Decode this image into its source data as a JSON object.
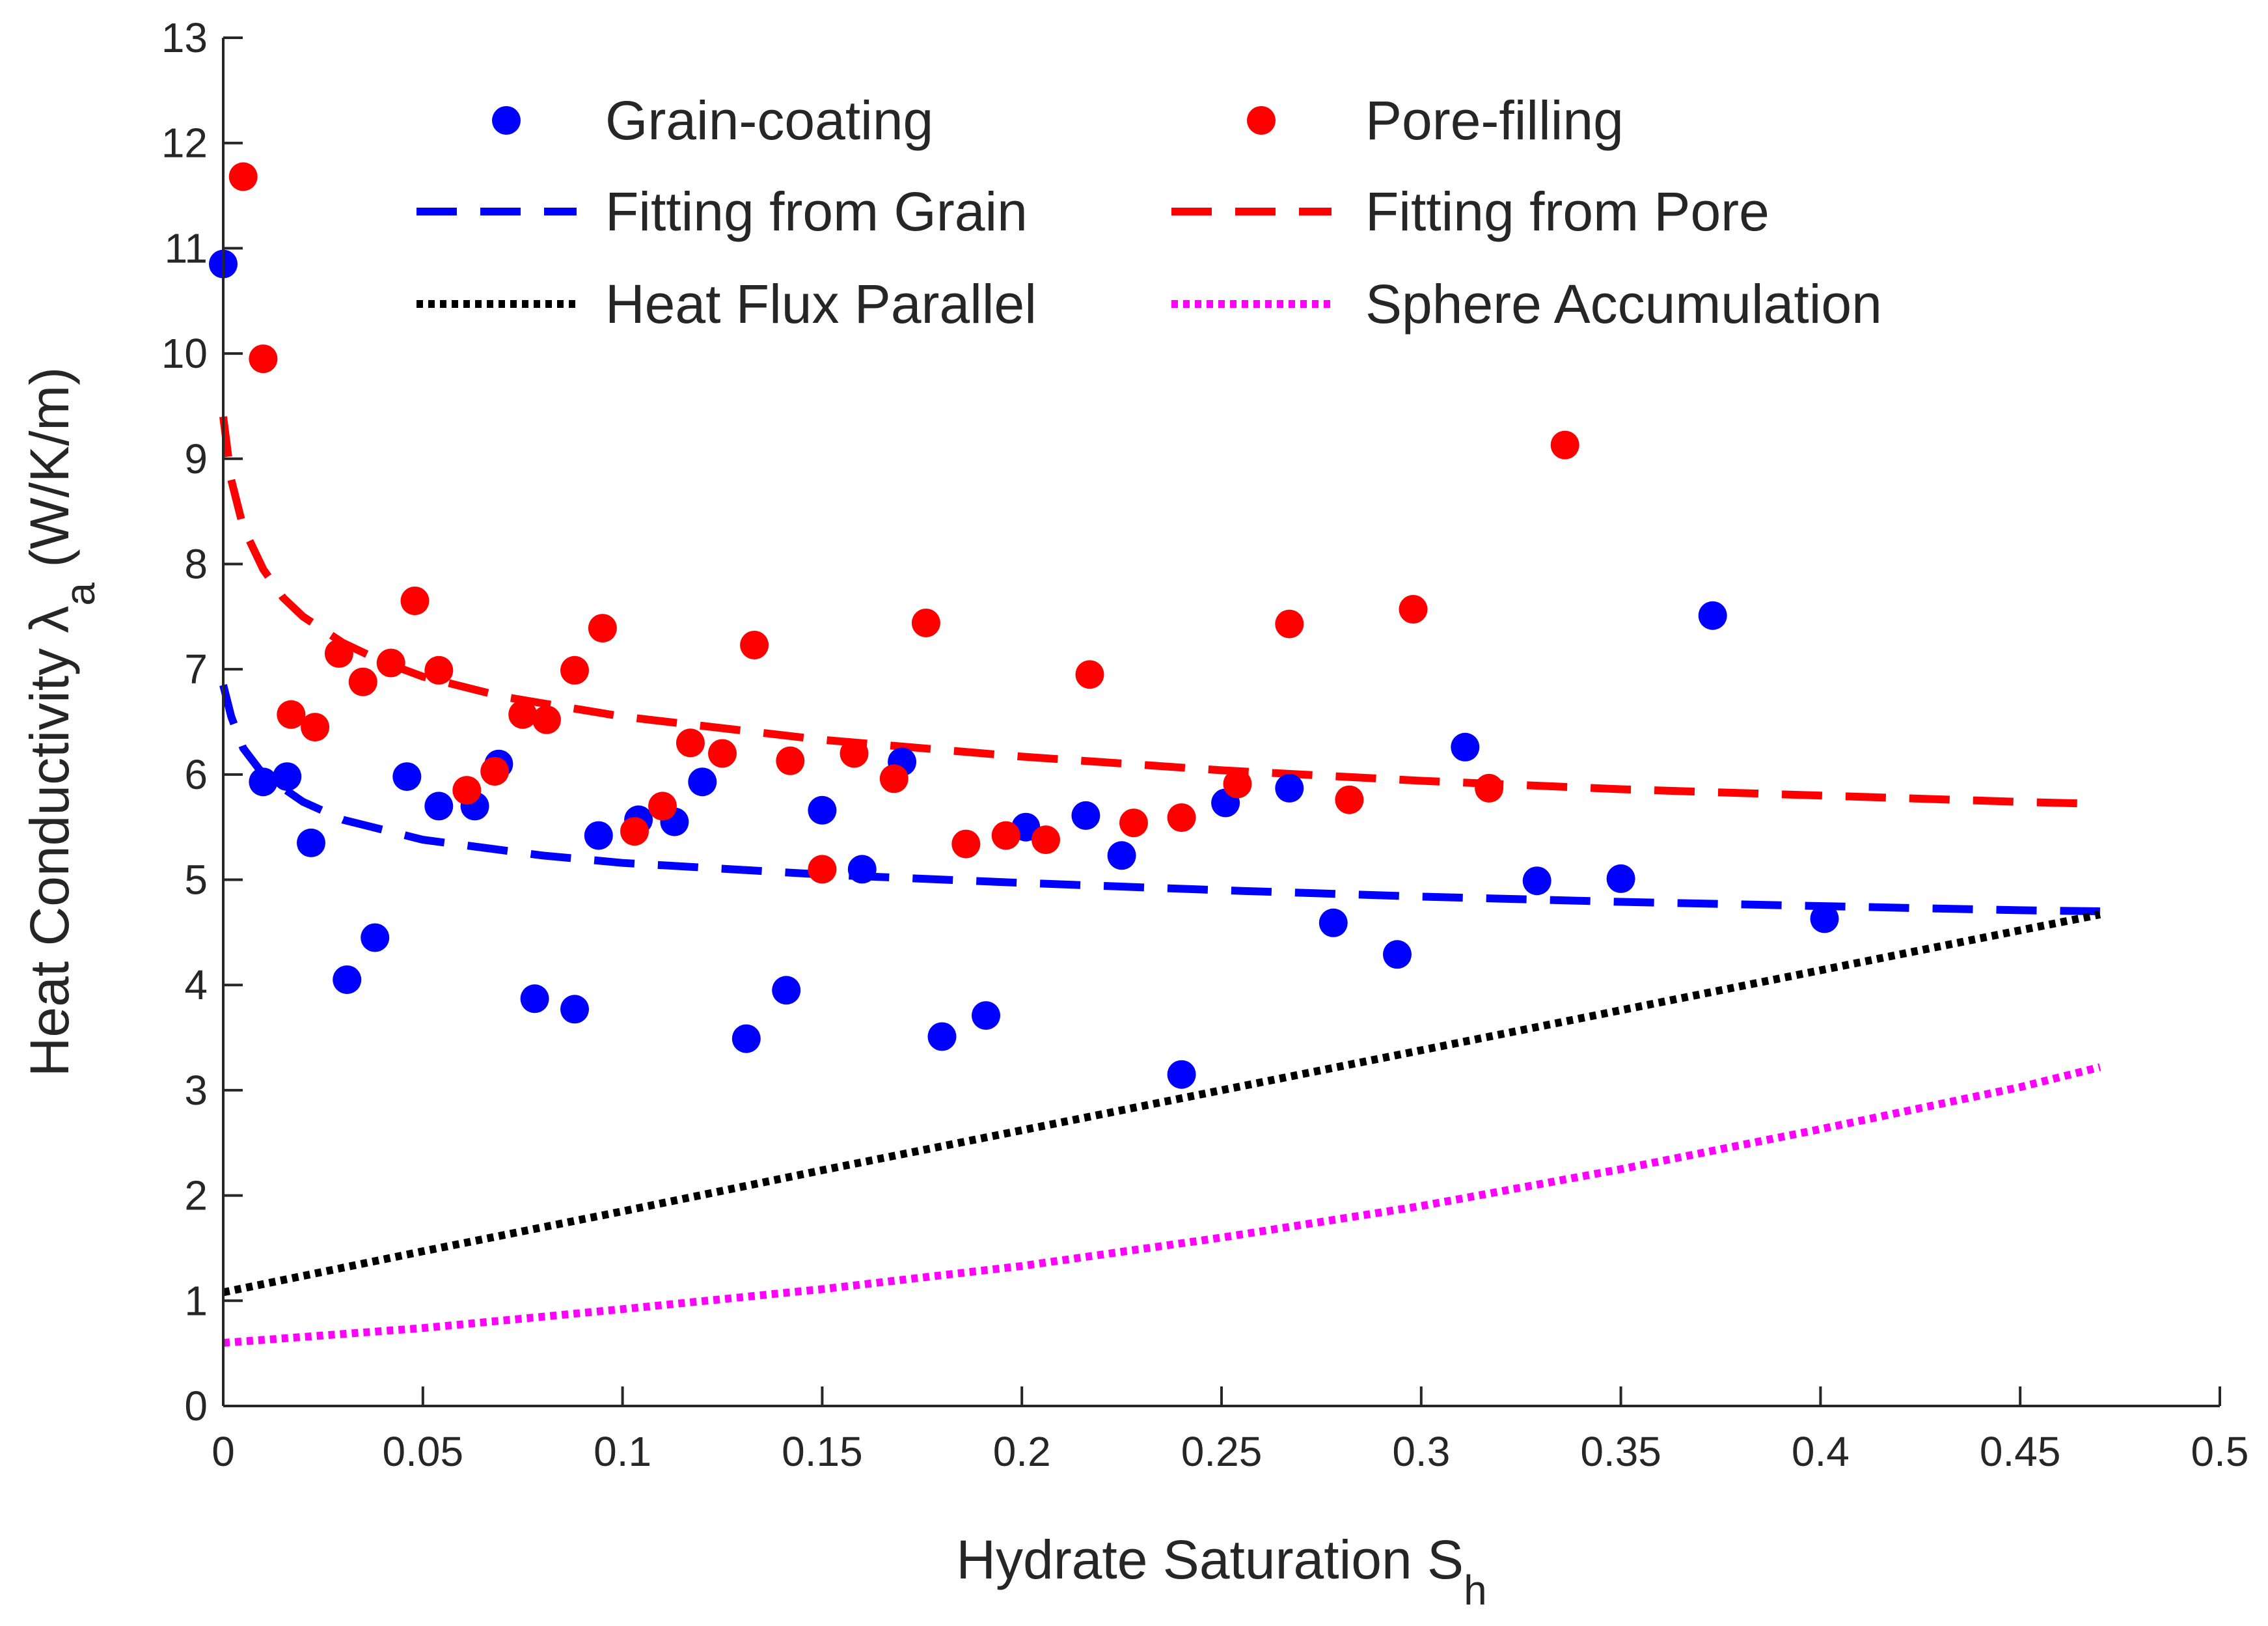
{
  "chart_data": {
    "type": "scatter",
    "xlabel": "Hydrate Saturation S",
    "xlabel_sub": "h",
    "ylabel": "Heat Conductivity λ",
    "ylabel_sub": "a",
    "ylabel_unit": " (W/K/m)",
    "xlim": [
      0,
      0.5
    ],
    "ylim": [
      0,
      13
    ],
    "xticks": [
      0,
      0.05,
      0.1,
      0.15,
      0.2,
      0.25,
      0.3,
      0.35,
      0.4,
      0.45,
      0.5
    ],
    "xtick_labels": [
      "0",
      "0.05",
      "0.1",
      "0.15",
      "0.2",
      "0.25",
      "0.3",
      "0.35",
      "0.4",
      "0.45",
      "0.5"
    ],
    "yticks": [
      0,
      1,
      2,
      3,
      4,
      5,
      6,
      7,
      8,
      9,
      10,
      11,
      12,
      13
    ],
    "ytick_labels": [
      "0",
      "1",
      "2",
      "3",
      "4",
      "5",
      "6",
      "7",
      "8",
      "9",
      "10",
      "11",
      "12",
      "13"
    ],
    "grid": false,
    "legend_position": "top",
    "series": [
      {
        "name": "Grain-coating",
        "kind": "scatter",
        "color": "#0000ff",
        "points": [
          [
            0.0,
            10.85
          ],
          [
            0.01,
            5.93
          ],
          [
            0.016,
            5.98
          ],
          [
            0.022,
            5.35
          ],
          [
            0.031,
            4.05
          ],
          [
            0.038,
            4.45
          ],
          [
            0.046,
            5.98
          ],
          [
            0.054,
            5.7
          ],
          [
            0.063,
            5.7
          ],
          [
            0.069,
            6.1
          ],
          [
            0.078,
            3.87
          ],
          [
            0.088,
            3.77
          ],
          [
            0.094,
            5.42
          ],
          [
            0.104,
            5.57
          ],
          [
            0.113,
            5.55
          ],
          [
            0.12,
            5.93
          ],
          [
            0.131,
            3.49
          ],
          [
            0.141,
            3.95
          ],
          [
            0.15,
            5.66
          ],
          [
            0.16,
            5.1
          ],
          [
            0.17,
            6.12
          ],
          [
            0.18,
            3.51
          ],
          [
            0.191,
            3.71
          ],
          [
            0.201,
            5.5
          ],
          [
            0.216,
            5.61
          ],
          [
            0.225,
            5.23
          ],
          [
            0.24,
            3.15
          ],
          [
            0.251,
            5.73
          ],
          [
            0.267,
            5.87
          ],
          [
            0.278,
            4.59
          ],
          [
            0.294,
            4.29
          ],
          [
            0.311,
            6.26
          ],
          [
            0.329,
            4.99
          ],
          [
            0.35,
            5.01
          ],
          [
            0.373,
            7.51
          ],
          [
            0.401,
            4.63
          ]
        ]
      },
      {
        "name": "Pore-filling",
        "kind": "scatter",
        "color": "#ff0000",
        "points": [
          [
            0.005,
            11.68
          ],
          [
            0.01,
            9.95
          ],
          [
            0.017,
            6.57
          ],
          [
            0.023,
            6.45
          ],
          [
            0.029,
            7.15
          ],
          [
            0.035,
            6.88
          ],
          [
            0.042,
            7.06
          ],
          [
            0.048,
            7.65
          ],
          [
            0.054,
            6.99
          ],
          [
            0.061,
            5.85
          ],
          [
            0.068,
            6.03
          ],
          [
            0.075,
            6.57
          ],
          [
            0.081,
            6.52
          ],
          [
            0.088,
            6.99
          ],
          [
            0.095,
            7.39
          ],
          [
            0.103,
            5.46
          ],
          [
            0.11,
            5.7
          ],
          [
            0.117,
            6.3
          ],
          [
            0.125,
            6.2
          ],
          [
            0.133,
            7.23
          ],
          [
            0.142,
            6.13
          ],
          [
            0.15,
            5.1
          ],
          [
            0.158,
            6.2
          ],
          [
            0.168,
            5.96
          ],
          [
            0.176,
            7.44
          ],
          [
            0.186,
            5.34
          ],
          [
            0.196,
            5.42
          ],
          [
            0.206,
            5.38
          ],
          [
            0.217,
            6.95
          ],
          [
            0.228,
            5.54
          ],
          [
            0.24,
            5.59
          ],
          [
            0.254,
            5.91
          ],
          [
            0.267,
            7.43
          ],
          [
            0.282,
            5.76
          ],
          [
            0.298,
            7.57
          ],
          [
            0.317,
            5.87
          ],
          [
            0.336,
            9.13
          ]
        ]
      },
      {
        "name": "Fitting from Grain",
        "kind": "line",
        "style": "dashed",
        "color": "#0000ff",
        "x": [
          0.0,
          0.002,
          0.005,
          0.01,
          0.02,
          0.03,
          0.05,
          0.08,
          0.1,
          0.15,
          0.2,
          0.25,
          0.3,
          0.35,
          0.4,
          0.45,
          0.47
        ],
        "y": [
          6.85,
          6.55,
          6.25,
          6.0,
          5.74,
          5.57,
          5.38,
          5.23,
          5.16,
          5.05,
          4.97,
          4.9,
          4.84,
          4.79,
          4.75,
          4.71,
          4.7
        ]
      },
      {
        "name": "Fitting from Pore",
        "kind": "line",
        "style": "dashed",
        "color": "#ff0000",
        "x": [
          0.0,
          0.002,
          0.005,
          0.01,
          0.015,
          0.02,
          0.03,
          0.04,
          0.05,
          0.07,
          0.1,
          0.15,
          0.2,
          0.25,
          0.3,
          0.35,
          0.4,
          0.45,
          0.47
        ],
        "y": [
          9.4,
          8.8,
          8.35,
          7.95,
          7.68,
          7.5,
          7.25,
          7.07,
          6.93,
          6.74,
          6.55,
          6.33,
          6.17,
          6.04,
          5.94,
          5.86,
          5.8,
          5.74,
          5.72
        ]
      },
      {
        "name": "Heat Flux Parallel",
        "kind": "line",
        "style": "dotted",
        "color": "#000000",
        "x": [
          0.0,
          0.05,
          0.1,
          0.15,
          0.2,
          0.25,
          0.3,
          0.35,
          0.4,
          0.45,
          0.47
        ],
        "y": [
          1.08,
          1.47,
          1.85,
          2.24,
          2.62,
          3.0,
          3.38,
          3.76,
          4.14,
          4.52,
          4.67
        ]
      },
      {
        "name": "Sphere Accumulation",
        "kind": "line",
        "style": "dotted",
        "color": "#ff00ff",
        "x": [
          0.0,
          0.05,
          0.1,
          0.15,
          0.2,
          0.25,
          0.3,
          0.35,
          0.4,
          0.45,
          0.47
        ],
        "y": [
          0.6,
          0.74,
          0.92,
          1.11,
          1.33,
          1.6,
          1.9,
          2.25,
          2.63,
          3.03,
          3.22
        ]
      }
    ]
  }
}
